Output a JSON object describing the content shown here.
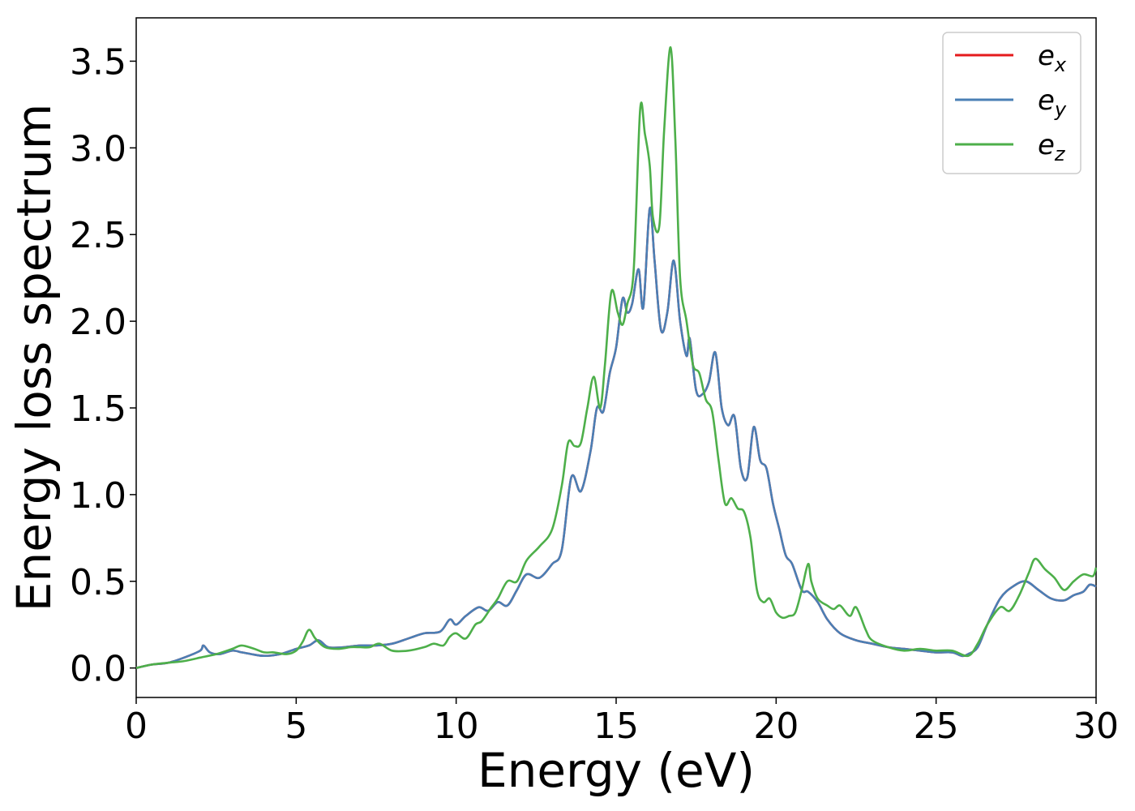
{
  "chart_data": {
    "type": "line",
    "xlabel": "Energy (eV)",
    "ylabel": "Energy loss spectrum",
    "xlim": [
      0,
      30
    ],
    "ylim": [
      -0.17,
      3.75
    ],
    "xticks": [
      0,
      5,
      10,
      15,
      20,
      25,
      30
    ],
    "yticks": [
      0.0,
      0.5,
      1.0,
      1.5,
      2.0,
      2.5,
      3.0,
      3.5
    ],
    "ytick_labels": [
      "0.0",
      "0.5",
      "1.0",
      "1.5",
      "2.0",
      "2.5",
      "3.0",
      "3.5"
    ],
    "grid": false,
    "legend_position": "top-right",
    "series": [
      {
        "name": "e_x",
        "label_main": "e",
        "label_sub": "x",
        "color": "#e41a1c",
        "x": [
          0,
          0.5,
          1,
          1.5,
          2,
          2.1,
          2.3,
          2.6,
          3,
          3.3,
          3.6,
          4,
          4.5,
          5,
          5.4,
          5.7,
          6,
          6.5,
          7,
          7.5,
          8,
          8.5,
          9,
          9.5,
          9.8,
          10,
          10.3,
          10.7,
          11,
          11.3,
          11.6,
          11.9,
          12.2,
          12.6,
          13,
          13.3,
          13.6,
          13.9,
          14.2,
          14.4,
          14.6,
          14.8,
          15,
          15.2,
          15.35,
          15.5,
          15.7,
          15.85,
          16.05,
          16.2,
          16.4,
          16.6,
          16.8,
          17,
          17.2,
          17.3,
          17.5,
          17.7,
          17.9,
          18.1,
          18.3,
          18.5,
          18.7,
          18.9,
          19.1,
          19.3,
          19.5,
          19.7,
          19.9,
          20.1,
          20.3,
          20.5,
          20.8,
          21,
          21.3,
          21.6,
          22,
          22.5,
          23,
          23.5,
          24,
          24.5,
          25,
          25.5,
          25.8,
          26,
          26.3,
          26.6,
          27,
          27.4,
          27.8,
          28.2,
          28.6,
          29,
          29.3,
          29.6,
          29.8,
          30
        ],
        "y": [
          0,
          0.02,
          0.03,
          0.06,
          0.1,
          0.13,
          0.09,
          0.08,
          0.1,
          0.09,
          0.08,
          0.07,
          0.08,
          0.11,
          0.13,
          0.16,
          0.12,
          0.12,
          0.13,
          0.13,
          0.14,
          0.17,
          0.2,
          0.21,
          0.28,
          0.25,
          0.3,
          0.35,
          0.33,
          0.38,
          0.36,
          0.45,
          0.54,
          0.52,
          0.6,
          0.68,
          1.1,
          1.02,
          1.25,
          1.5,
          1.48,
          1.7,
          1.85,
          2.13,
          2.05,
          2.1,
          2.3,
          2.08,
          2.65,
          2.35,
          1.95,
          2.05,
          2.35,
          2.0,
          1.8,
          1.9,
          1.6,
          1.58,
          1.65,
          1.82,
          1.5,
          1.4,
          1.45,
          1.15,
          1.1,
          1.39,
          1.2,
          1.15,
          0.95,
          0.8,
          0.65,
          0.6,
          0.45,
          0.44,
          0.38,
          0.28,
          0.2,
          0.16,
          0.14,
          0.12,
          0.11,
          0.1,
          0.09,
          0.09,
          0.07,
          0.08,
          0.12,
          0.25,
          0.4,
          0.47,
          0.5,
          0.45,
          0.4,
          0.39,
          0.42,
          0.44,
          0.48,
          0.47
        ]
      },
      {
        "name": "e_y",
        "label_main": "e",
        "label_sub": "y",
        "color": "#4a7fb5",
        "x": [
          0,
          0.5,
          1,
          1.5,
          2,
          2.1,
          2.3,
          2.6,
          3,
          3.3,
          3.6,
          4,
          4.5,
          5,
          5.4,
          5.7,
          6,
          6.5,
          7,
          7.5,
          8,
          8.5,
          9,
          9.5,
          9.8,
          10,
          10.3,
          10.7,
          11,
          11.3,
          11.6,
          11.9,
          12.2,
          12.6,
          13,
          13.3,
          13.6,
          13.9,
          14.2,
          14.4,
          14.6,
          14.8,
          15,
          15.2,
          15.35,
          15.5,
          15.7,
          15.85,
          16.05,
          16.2,
          16.4,
          16.6,
          16.8,
          17,
          17.2,
          17.3,
          17.5,
          17.7,
          17.9,
          18.1,
          18.3,
          18.5,
          18.7,
          18.9,
          19.1,
          19.3,
          19.5,
          19.7,
          19.9,
          20.1,
          20.3,
          20.5,
          20.8,
          21,
          21.3,
          21.6,
          22,
          22.5,
          23,
          23.5,
          24,
          24.5,
          25,
          25.5,
          25.8,
          26,
          26.3,
          26.6,
          27,
          27.4,
          27.8,
          28.2,
          28.6,
          29,
          29.3,
          29.6,
          29.8,
          30
        ],
        "y": [
          0,
          0.02,
          0.03,
          0.06,
          0.1,
          0.13,
          0.09,
          0.08,
          0.1,
          0.09,
          0.08,
          0.07,
          0.08,
          0.11,
          0.13,
          0.16,
          0.12,
          0.12,
          0.13,
          0.13,
          0.14,
          0.17,
          0.2,
          0.21,
          0.28,
          0.25,
          0.3,
          0.35,
          0.33,
          0.38,
          0.36,
          0.45,
          0.54,
          0.52,
          0.6,
          0.68,
          1.1,
          1.02,
          1.25,
          1.5,
          1.48,
          1.7,
          1.85,
          2.13,
          2.05,
          2.1,
          2.3,
          2.08,
          2.65,
          2.35,
          1.95,
          2.05,
          2.35,
          2.0,
          1.8,
          1.9,
          1.6,
          1.58,
          1.65,
          1.82,
          1.5,
          1.4,
          1.45,
          1.15,
          1.1,
          1.39,
          1.2,
          1.15,
          0.95,
          0.8,
          0.65,
          0.6,
          0.45,
          0.44,
          0.38,
          0.28,
          0.2,
          0.16,
          0.14,
          0.12,
          0.11,
          0.1,
          0.09,
          0.09,
          0.07,
          0.08,
          0.12,
          0.25,
          0.4,
          0.47,
          0.5,
          0.45,
          0.4,
          0.39,
          0.42,
          0.44,
          0.48,
          0.47
        ]
      },
      {
        "name": "e_z",
        "label_main": "e",
        "label_sub": "z",
        "color": "#4daf4a",
        "x": [
          0,
          0.5,
          1,
          1.5,
          2,
          2.5,
          3,
          3.3,
          3.7,
          4,
          4.3,
          4.7,
          5,
          5.2,
          5.4,
          5.6,
          5.9,
          6.3,
          6.7,
          7,
          7.3,
          7.6,
          8,
          8.5,
          9,
          9.3,
          9.6,
          9.8,
          10,
          10.3,
          10.6,
          10.8,
          11.1,
          11.3,
          11.6,
          11.9,
          12.2,
          12.6,
          13,
          13.3,
          13.5,
          13.7,
          13.9,
          14.1,
          14.3,
          14.5,
          14.65,
          14.85,
          15.05,
          15.2,
          15.35,
          15.55,
          15.75,
          15.9,
          16.05,
          16.15,
          16.35,
          16.5,
          16.7,
          16.85,
          17,
          17.2,
          17.4,
          17.6,
          17.8,
          18,
          18.2,
          18.4,
          18.6,
          18.8,
          19,
          19.2,
          19.4,
          19.6,
          19.8,
          20,
          20.2,
          20.4,
          20.6,
          20.8,
          21,
          21.1,
          21.3,
          21.6,
          21.8,
          22,
          22.3,
          22.5,
          22.8,
          23,
          23.5,
          24,
          24.5,
          25,
          25.5,
          26,
          26.3,
          26.6,
          27,
          27.3,
          27.6,
          27.9,
          28.1,
          28.4,
          28.7,
          29,
          29.3,
          29.6,
          29.9,
          30
        ],
        "y": [
          0,
          0.02,
          0.03,
          0.04,
          0.06,
          0.08,
          0.11,
          0.13,
          0.11,
          0.09,
          0.09,
          0.08,
          0.1,
          0.15,
          0.22,
          0.17,
          0.12,
          0.11,
          0.12,
          0.12,
          0.12,
          0.14,
          0.1,
          0.1,
          0.12,
          0.14,
          0.13,
          0.18,
          0.2,
          0.17,
          0.25,
          0.27,
          0.35,
          0.4,
          0.5,
          0.5,
          0.62,
          0.7,
          0.8,
          1.05,
          1.3,
          1.28,
          1.3,
          1.5,
          1.68,
          1.5,
          1.75,
          2.17,
          2.05,
          1.98,
          2.1,
          2.3,
          3.22,
          3.08,
          2.9,
          2.6,
          2.55,
          3.1,
          3.58,
          3.05,
          2.25,
          2.0,
          1.75,
          1.7,
          1.55,
          1.48,
          1.2,
          0.95,
          0.98,
          0.92,
          0.9,
          0.75,
          0.45,
          0.38,
          0.4,
          0.32,
          0.29,
          0.3,
          0.32,
          0.45,
          0.6,
          0.5,
          0.4,
          0.36,
          0.34,
          0.36,
          0.3,
          0.35,
          0.22,
          0.16,
          0.12,
          0.1,
          0.11,
          0.1,
          0.1,
          0.07,
          0.14,
          0.25,
          0.35,
          0.33,
          0.42,
          0.55,
          0.63,
          0.57,
          0.52,
          0.45,
          0.5,
          0.54,
          0.53,
          0.58
        ]
      }
    ]
  }
}
